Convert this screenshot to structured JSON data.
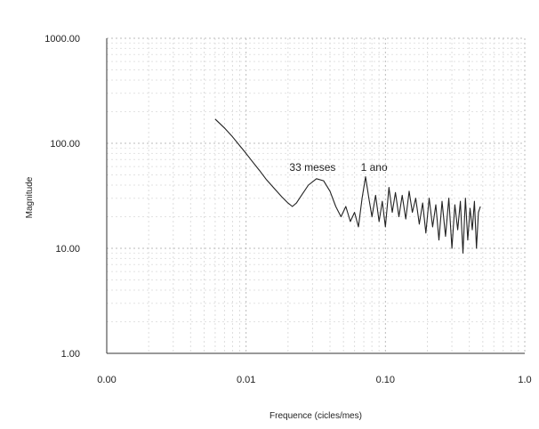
{
  "chart_data": {
    "type": "line",
    "xscale": "log",
    "yscale": "log",
    "xlim": [
      0.001,
      1.0
    ],
    "ylim": [
      1.0,
      1000.0
    ],
    "xlabel": "Frequence (cicles/mes)",
    "ylabel": "Magnitude",
    "grid": true,
    "x_tick_labels": [
      "0.00",
      "0.01",
      "0.10",
      "1.0"
    ],
    "y_tick_labels": [
      "1.00",
      "10.00",
      "100.00",
      "1000.00"
    ],
    "annotations": [
      {
        "text": "33 meses",
        "x": 0.03,
        "y": 45
      },
      {
        "text": "1 ano",
        "x": 0.083,
        "y": 45
      }
    ],
    "series": [
      {
        "color": "#222222",
        "points": [
          [
            0.006,
            170
          ],
          [
            0.007,
            140
          ],
          [
            0.008,
            115
          ],
          [
            0.009,
            95
          ],
          [
            0.01,
            80
          ],
          [
            0.011,
            68
          ],
          [
            0.0125,
            55
          ],
          [
            0.014,
            45
          ],
          [
            0.016,
            37
          ],
          [
            0.018,
            31
          ],
          [
            0.02,
            27
          ],
          [
            0.0215,
            25
          ],
          [
            0.023,
            27
          ],
          [
            0.025,
            32
          ],
          [
            0.028,
            40
          ],
          [
            0.032,
            46
          ],
          [
            0.036,
            44
          ],
          [
            0.04,
            35
          ],
          [
            0.044,
            25
          ],
          [
            0.048,
            20
          ],
          [
            0.052,
            25
          ],
          [
            0.056,
            18
          ],
          [
            0.06,
            22
          ],
          [
            0.064,
            16
          ],
          [
            0.068,
            30
          ],
          [
            0.072,
            48
          ],
          [
            0.076,
            30
          ],
          [
            0.08,
            20
          ],
          [
            0.085,
            32
          ],
          [
            0.09,
            18
          ],
          [
            0.095,
            28
          ],
          [
            0.1,
            16
          ],
          [
            0.106,
            38
          ],
          [
            0.112,
            22
          ],
          [
            0.118,
            34
          ],
          [
            0.125,
            20
          ],
          [
            0.132,
            32
          ],
          [
            0.14,
            19
          ],
          [
            0.148,
            35
          ],
          [
            0.156,
            22
          ],
          [
            0.165,
            30
          ],
          [
            0.175,
            17
          ],
          [
            0.185,
            27
          ],
          [
            0.195,
            14
          ],
          [
            0.206,
            30
          ],
          [
            0.218,
            16
          ],
          [
            0.23,
            26
          ],
          [
            0.242,
            12
          ],
          [
            0.255,
            28
          ],
          [
            0.27,
            13
          ],
          [
            0.285,
            30
          ],
          [
            0.3,
            10
          ],
          [
            0.315,
            26
          ],
          [
            0.33,
            15
          ],
          [
            0.345,
            28
          ],
          [
            0.36,
            9
          ],
          [
            0.375,
            30
          ],
          [
            0.39,
            12
          ],
          [
            0.405,
            24
          ],
          [
            0.42,
            15
          ],
          [
            0.435,
            28
          ],
          [
            0.45,
            10
          ],
          [
            0.465,
            22
          ],
          [
            0.48,
            25
          ]
        ]
      }
    ]
  }
}
